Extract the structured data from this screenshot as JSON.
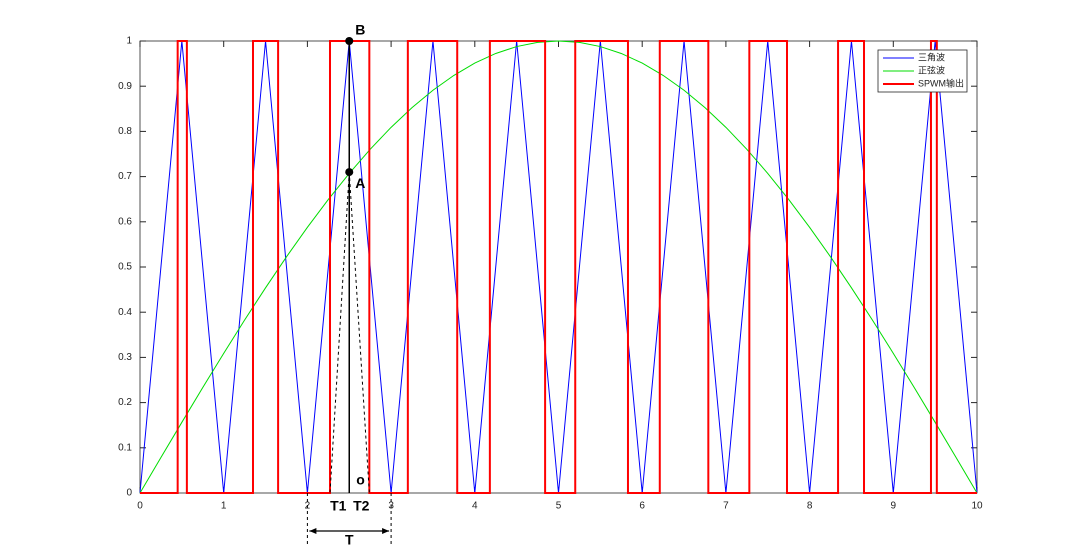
{
  "chart_data": {
    "type": "line",
    "xlim": [
      0,
      10
    ],
    "ylim": [
      0,
      1
    ],
    "xticks": [
      0,
      1,
      2,
      3,
      4,
      5,
      6,
      7,
      8,
      9,
      10
    ],
    "yticks": [
      0,
      0.1,
      0.2,
      0.3,
      0.4,
      0.5,
      0.6,
      0.7,
      0.8,
      0.9,
      1
    ],
    "grid": false,
    "legend": "upper right",
    "series": [
      {
        "name": "三角波",
        "color": "#0000ff",
        "x": [
          0,
          0.5,
          1,
          1.5,
          2,
          2.5,
          3,
          3.5,
          4,
          4.5,
          5,
          5.5,
          6,
          6.5,
          7,
          7.5,
          8,
          8.5,
          9,
          9.5,
          10
        ],
        "values": [
          0,
          1,
          0,
          1,
          0,
          1,
          0,
          1,
          0,
          1,
          0,
          1,
          0,
          1,
          0,
          1,
          0,
          1,
          0,
          1,
          0
        ]
      },
      {
        "name": "正弦波",
        "color": "#00dd00",
        "x": [
          0,
          0.25,
          0.5,
          0.75,
          1,
          1.25,
          1.5,
          1.75,
          2,
          2.25,
          2.5,
          2.75,
          3,
          3.25,
          3.5,
          3.75,
          4,
          4.25,
          4.5,
          4.75,
          5,
          5.25,
          5.5,
          5.75,
          6,
          6.25,
          6.5,
          6.75,
          7,
          7.25,
          7.5,
          7.75,
          8,
          8.25,
          8.5,
          8.75,
          9,
          9.25,
          9.5,
          9.75,
          10
        ],
        "values": [
          0,
          0.0785,
          0.1564,
          0.2334,
          0.309,
          0.3827,
          0.454,
          0.5225,
          0.5878,
          0.6494,
          0.7071,
          0.7604,
          0.809,
          0.8526,
          0.891,
          0.9239,
          0.9511,
          0.9724,
          0.9877,
          0.9969,
          1,
          0.9969,
          0.9877,
          0.9724,
          0.9511,
          0.9239,
          0.891,
          0.8526,
          0.809,
          0.7604,
          0.7071,
          0.6494,
          0.5878,
          0.5225,
          0.454,
          0.3827,
          0.309,
          0.2334,
          0.1564,
          0.0785,
          0
        ]
      },
      {
        "name": "SPWM输出",
        "color": "#ff0000",
        "x": [
          0,
          0.45,
          0.45,
          0.56,
          0.56,
          1.35,
          1.35,
          1.65,
          1.65,
          2.27,
          2.27,
          2.74,
          2.74,
          3.2,
          3.2,
          3.79,
          3.79,
          4.18,
          4.18,
          4.84,
          4.84,
          5.2,
          5.2,
          5.83,
          5.83,
          6.21,
          6.21,
          6.79,
          6.79,
          7.28,
          7.28,
          7.73,
          7.73,
          8.34,
          8.34,
          8.65,
          8.65,
          9.45,
          9.45,
          9.52,
          9.52,
          10
        ],
        "values": [
          0,
          0,
          1,
          1,
          0,
          0,
          1,
          1,
          0,
          0,
          1,
          1,
          0,
          0,
          1,
          1,
          0,
          0,
          1,
          1,
          0,
          0,
          1,
          1,
          0,
          0,
          1,
          1,
          0,
          0,
          1,
          1,
          0,
          0,
          1,
          1,
          0,
          0,
          1,
          1,
          0,
          0
        ]
      }
    ],
    "annotations": [
      "B",
      "A",
      "T1",
      "T2",
      "o",
      "T"
    ]
  }
}
